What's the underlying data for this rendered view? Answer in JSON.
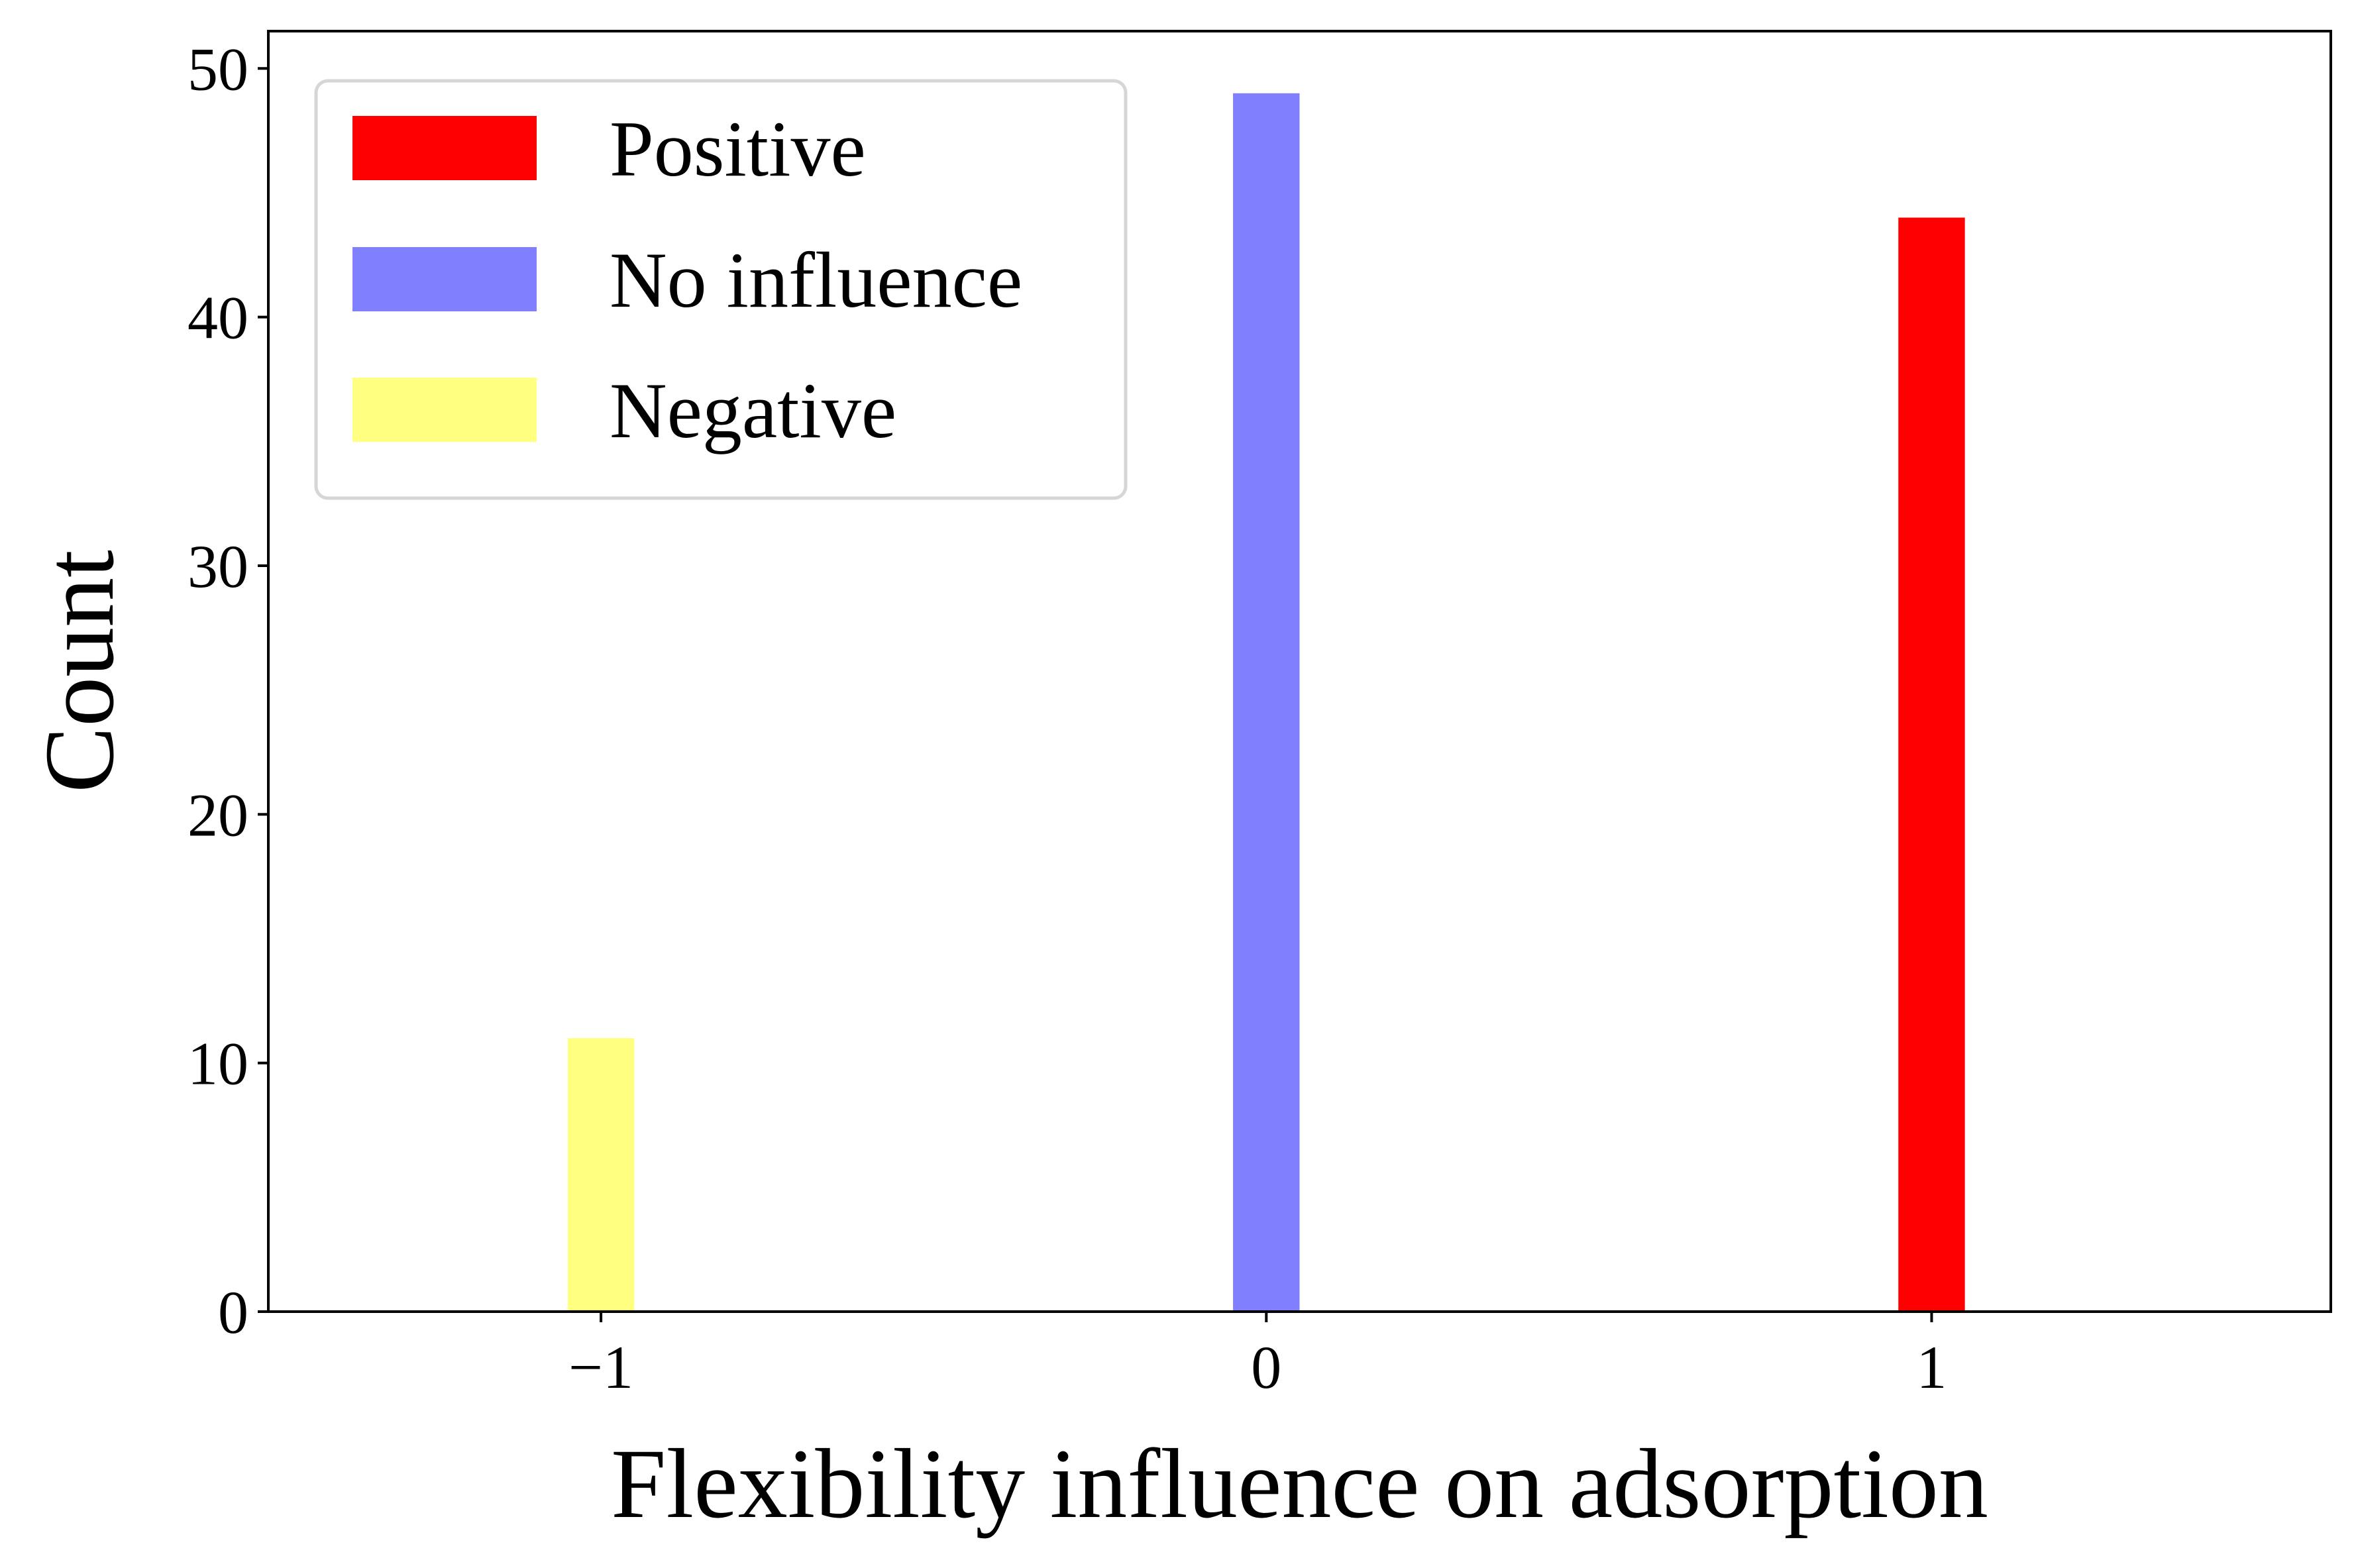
{
  "chart_data": {
    "type": "bar",
    "xlabel": "Flexibility influence on adsorption",
    "ylabel": "Count",
    "xlim": [
      -1.5,
      1.6
    ],
    "ylim": [
      0,
      51.5
    ],
    "x_ticks": [
      {
        "value": -1,
        "label": "−1"
      },
      {
        "value": 0,
        "label": "0"
      },
      {
        "value": 1,
        "label": "1"
      }
    ],
    "y_ticks": [
      {
        "value": 0,
        "label": "0"
      },
      {
        "value": 10,
        "label": "10"
      },
      {
        "value": 20,
        "label": "20"
      },
      {
        "value": 30,
        "label": "30"
      },
      {
        "value": 40,
        "label": "40"
      },
      {
        "value": 50,
        "label": "50"
      }
    ],
    "bar_width": 0.1,
    "series": [
      {
        "name": "Positive",
        "color": "#ff0000",
        "x": [
          1
        ],
        "values": [
          44
        ]
      },
      {
        "name": "No influence",
        "color": "#8080ff",
        "x": [
          0
        ],
        "values": [
          49
        ]
      },
      {
        "name": "Negative",
        "color": "#ffff80",
        "x": [
          -1
        ],
        "values": [
          11
        ]
      }
    ],
    "legend_position": "top-left",
    "grid": false
  }
}
